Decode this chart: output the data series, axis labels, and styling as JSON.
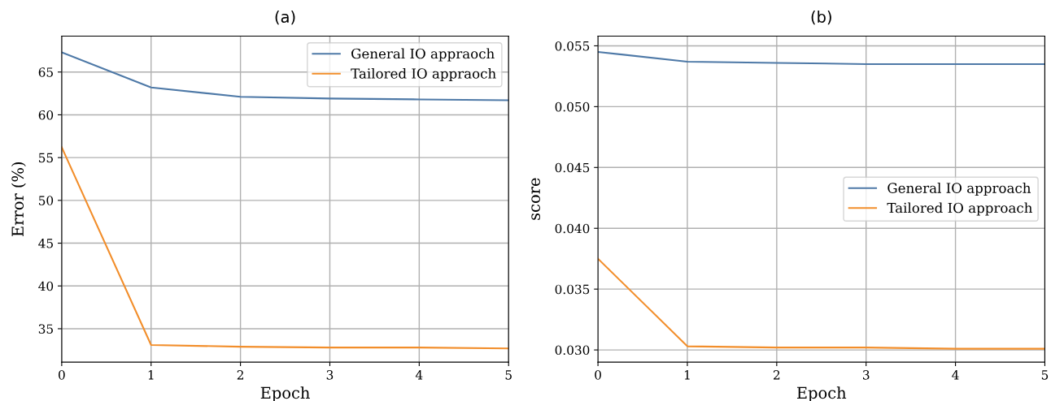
{
  "chart_data": [
    {
      "type": "line",
      "title": "(a)",
      "xlabel": "Epoch",
      "ylabel": "Error (%)",
      "x": [
        0,
        1,
        2,
        3,
        4,
        5
      ],
      "series": [
        {
          "name": "General IO appraoch",
          "color": "#4e79a7",
          "values": [
            67.3,
            63.2,
            62.1,
            61.9,
            61.8,
            61.7
          ]
        },
        {
          "name": "Tailored IO appraoch",
          "color": "#f28e2b",
          "values": [
            56.2,
            33.1,
            32.9,
            32.8,
            32.8,
            32.7
          ]
        }
      ],
      "xlim": [
        0,
        5
      ],
      "xticks": [
        0,
        1,
        2,
        3,
        4,
        5
      ],
      "ylim": [
        31.1,
        69.2
      ],
      "yticks": [
        35,
        40,
        45,
        50,
        55,
        60,
        65
      ],
      "grid": true,
      "legend": "top right",
      "marker": "none",
      "line_style": "solid"
    },
    {
      "type": "line",
      "title": "(b)",
      "xlabel": "Epoch",
      "ylabel": "score",
      "x": [
        0,
        1,
        2,
        3,
        4,
        5
      ],
      "series": [
        {
          "name": "General IO approach",
          "color": "#4e79a7",
          "values": [
            0.0545,
            0.0537,
            0.0536,
            0.0535,
            0.0535,
            0.0535
          ]
        },
        {
          "name": "Tailored IO approach",
          "color": "#f28e2b",
          "values": [
            0.0375,
            0.0303,
            0.0302,
            0.0302,
            0.0301,
            0.0301
          ]
        }
      ],
      "xlim": [
        0,
        5
      ],
      "xticks": [
        0,
        1,
        2,
        3,
        4,
        5
      ],
      "ylim": [
        0.029,
        0.0558
      ],
      "yticks": [
        {
          "value": 0.03,
          "label": "0.030"
        },
        {
          "value": 0.035,
          "label": "0.035"
        },
        {
          "value": 0.04,
          "label": "0.040"
        },
        {
          "value": 0.045,
          "label": "0.045"
        },
        {
          "value": 0.05,
          "label": "0.050"
        },
        {
          "value": 0.055,
          "label": "0.055"
        }
      ],
      "grid": true,
      "legend": "right",
      "marker": "none",
      "line_style": "solid"
    }
  ]
}
